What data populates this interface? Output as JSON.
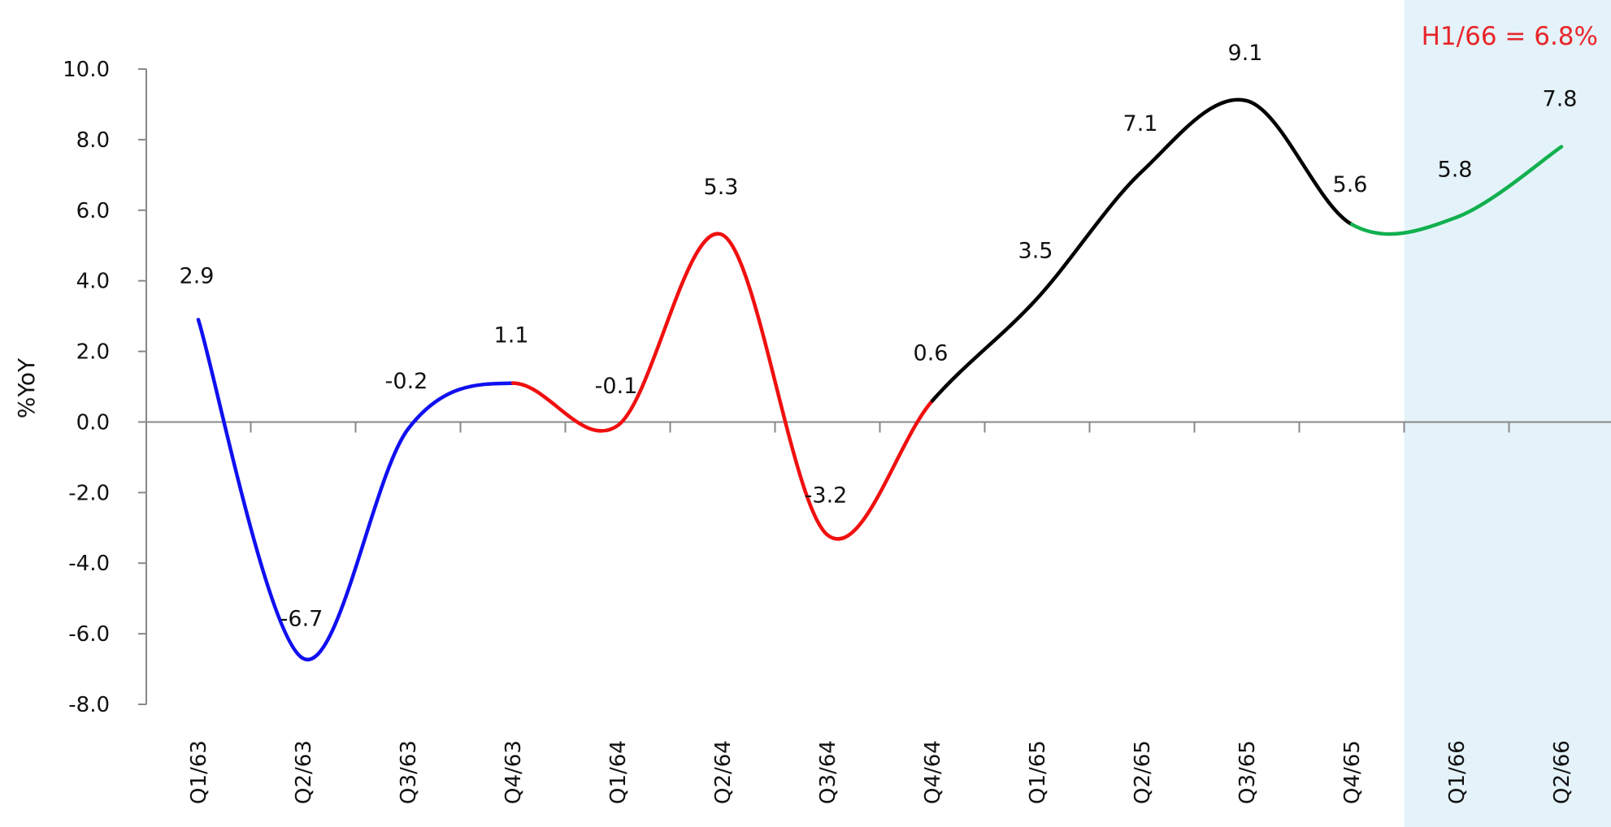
{
  "chart_data": {
    "type": "line",
    "title": "",
    "xlabel": "",
    "ylabel": "%YoY",
    "ylim": [
      -8.0,
      10.0
    ],
    "yticks": [
      "10.0",
      "8.0",
      "6.0",
      "4.0",
      "2.0",
      "0.0",
      "-2.0",
      "-4.0",
      "-6.0",
      "-8.0"
    ],
    "ytick_values": [
      10,
      8,
      6,
      4,
      2,
      0,
      -2,
      -4,
      -6,
      -8
    ],
    "categories": [
      "Q1/63",
      "Q2/63",
      "Q3/63",
      "Q4/63",
      "Q1/64",
      "Q2/64",
      "Q3/64",
      "Q4/64",
      "Q1/65",
      "Q2/65",
      "Q3/65",
      "Q4/65",
      "Q1/66",
      "Q2/66"
    ],
    "values": [
      2.9,
      -6.7,
      -0.2,
      1.1,
      -0.1,
      5.3,
      -3.2,
      0.6,
      3.5,
      7.1,
      9.1,
      5.6,
      5.8,
      7.8
    ],
    "data_labels": [
      "2.9",
      "-6.7",
      "-0.2",
      "1.1",
      "-0.1",
      "5.3",
      "-3.2",
      "0.6",
      "3.5",
      "7.1",
      "9.1",
      "5.6",
      "5.8",
      "7.8"
    ],
    "segments": [
      {
        "from": 0,
        "to": 3,
        "color": "#1010f0"
      },
      {
        "from": 3,
        "to": 7,
        "color": "#f01010"
      },
      {
        "from": 7,
        "to": 11,
        "color": "#000000"
      },
      {
        "from": 11,
        "to": 13,
        "color": "#12b04f"
      }
    ],
    "highlight": {
      "from_category": "Q1/66",
      "to_category": "Q2/66",
      "color": "#e4f3fa"
    },
    "annotation": {
      "text": "H1/66 = 6.8%",
      "color": "#e8262a"
    },
    "grid": false,
    "legend": "none"
  }
}
